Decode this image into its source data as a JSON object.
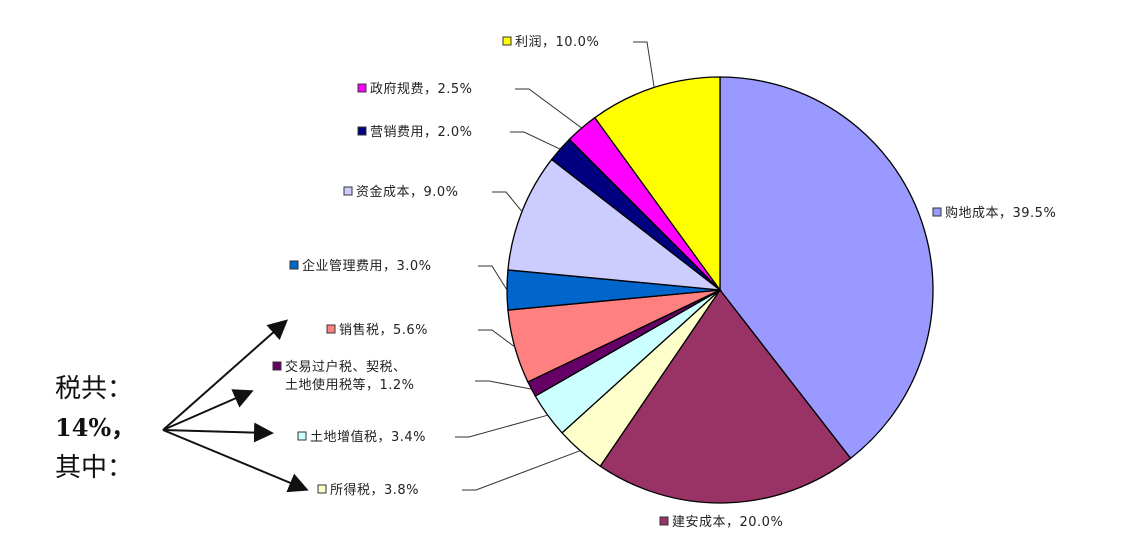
{
  "chart_data": {
    "type": "pie",
    "start": "top",
    "direction": "clockwise",
    "slices": [
      {
        "label": "购地成本",
        "value": 39.5,
        "text": "购地成本，39.5%",
        "color": "#9999ff"
      },
      {
        "label": "建安成本",
        "value": 20.0,
        "text": "建安成本，20.0%",
        "color": "#993366"
      },
      {
        "label": "所得税",
        "value": 3.8,
        "text": "所得税，3.8%",
        "color": "#ffffcc"
      },
      {
        "label": "土地增值税",
        "value": 3.4,
        "text": "土地增值税，3.4%",
        "color": "#ccffff"
      },
      {
        "label": "交易过户税、契税、土地使用税等",
        "value": 1.2,
        "text": [
          "交易过户税、契税、",
          "土地使用税等，1.2%"
        ],
        "color": "#660066"
      },
      {
        "label": "销售税",
        "value": 5.6,
        "text": "销售税，5.6%",
        "color": "#ff8080"
      },
      {
        "label": "企业管理费用",
        "value": 3.0,
        "text": "企业管理费用，3.0%",
        "color": "#0066cc"
      },
      {
        "label": "资金成本",
        "value": 9.0,
        "text": "资金成本，9.0%",
        "color": "#ccccff"
      },
      {
        "label": "营销费用",
        "value": 2.0,
        "text": "营销费用，2.0%",
        "color": "#000080"
      },
      {
        "label": "政府规费",
        "value": 2.5,
        "text": "政府规费，2.5%",
        "color": "#ff00ff"
      },
      {
        "label": "利润",
        "value": 10.0,
        "text": "利润，10.0%",
        "color": "#ffff00"
      }
    ],
    "annotation": {
      "lines": [
        "税共：",
        "14%，",
        "其中："
      ]
    }
  }
}
